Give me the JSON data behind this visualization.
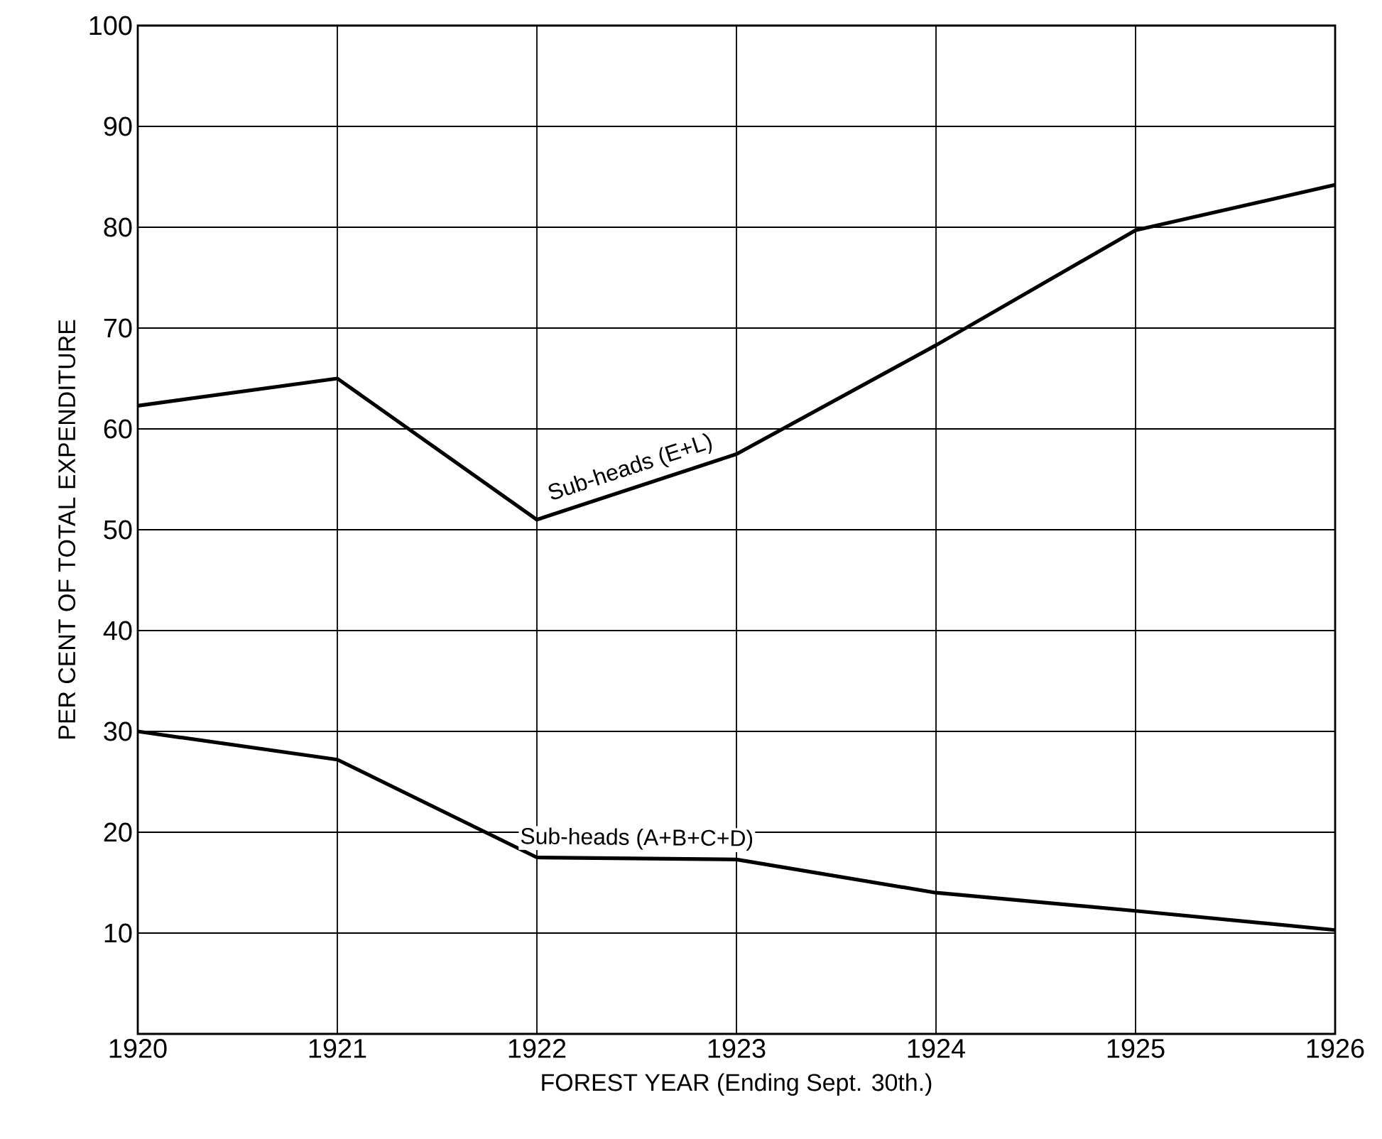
{
  "chart_data": {
    "type": "line",
    "xlabel": "FOREST YEAR (Ending Sept. 30th.)",
    "ylabel": "PER CENT OF TOTAL EXPENDITURE",
    "x": [
      1920,
      1921,
      1922,
      1923,
      1924,
      1925,
      1926
    ],
    "series": [
      {
        "name": "Sub-heads (E+L)",
        "color": "#000000",
        "values": [
          62.3,
          65,
          51,
          57.5,
          68.3,
          79.7,
          84.2
        ]
      },
      {
        "name": "Sub-heads (A+B+C+D)",
        "color": "#000000",
        "values": [
          30,
          27.2,
          17.5,
          17.3,
          14,
          12.2,
          10.3
        ]
      }
    ],
    "xlim": [
      1920,
      1926
    ],
    "xticks": [
      1920,
      1921,
      1922,
      1923,
      1924,
      1925,
      1926
    ],
    "ylim": [
      0,
      100
    ],
    "yticks": [
      {
        "value": 0,
        "label": null
      },
      10,
      20,
      30,
      40,
      50,
      60,
      70,
      80,
      90,
      100
    ],
    "grid": true
  }
}
